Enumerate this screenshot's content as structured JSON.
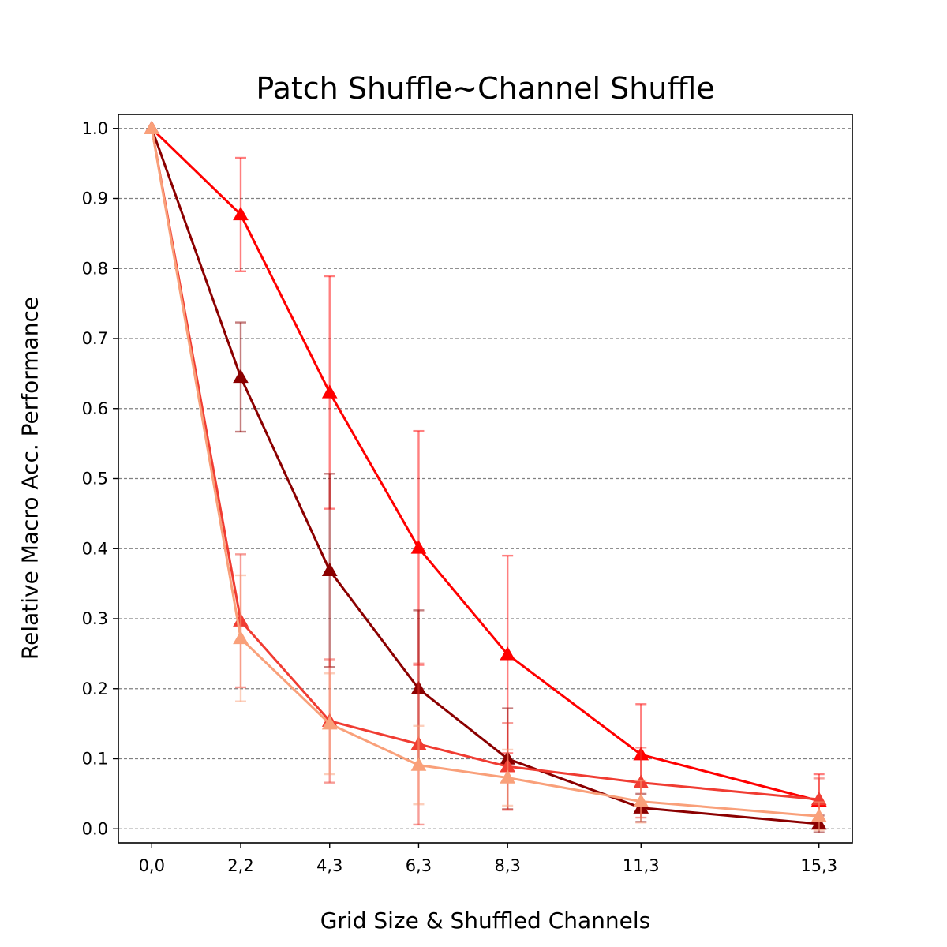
{
  "chart_data": {
    "type": "line",
    "title": "Patch Shuffle~Channel Shuffle",
    "xlabel": "Grid Size & Shuffled Channels",
    "ylabel": "Relative Macro Acc. Performance",
    "categories": [
      "0,0",
      "2,2",
      "4,3",
      "6,3",
      "8,3",
      "11,3",
      "15,3"
    ],
    "x": [
      0,
      2,
      4,
      6,
      8,
      11,
      15
    ],
    "ylim": [
      -0.02,
      1.02
    ],
    "yticks": [
      "0.0",
      "0.1",
      "0.2",
      "0.3",
      "0.4",
      "0.5",
      "0.6",
      "0.7",
      "0.8",
      "0.9",
      "1.0"
    ],
    "grid": "horizontal dashed",
    "marker": "triangle",
    "series": [
      {
        "color": "#ff0000",
        "values": [
          1.0,
          0.877,
          0.623,
          0.401,
          0.249,
          0.106,
          0.04
        ],
        "err": [
          0.0,
          0.081,
          0.166,
          0.167,
          0.141,
          0.072,
          0.038
        ]
      },
      {
        "color": "#8b0000",
        "values": [
          1.0,
          0.645,
          0.369,
          0.2,
          0.1,
          0.03,
          0.007
        ],
        "err": [
          0.0,
          0.078,
          0.138,
          0.112,
          0.072,
          0.02,
          0.012
        ]
      },
      {
        "color": "#f03c32",
        "values": [
          1.0,
          0.297,
          0.154,
          0.121,
          0.089,
          0.066,
          0.042
        ],
        "err": [
          0.0,
          0.095,
          0.088,
          0.115,
          0.062,
          0.05,
          0.03
        ]
      },
      {
        "color": "#f9a07a",
        "values": [
          1.0,
          0.272,
          0.15,
          0.091,
          0.073,
          0.039,
          0.018
        ],
        "err": [
          0.0,
          0.09,
          0.072,
          0.056,
          0.04,
          0.03,
          0.02
        ]
      }
    ]
  }
}
